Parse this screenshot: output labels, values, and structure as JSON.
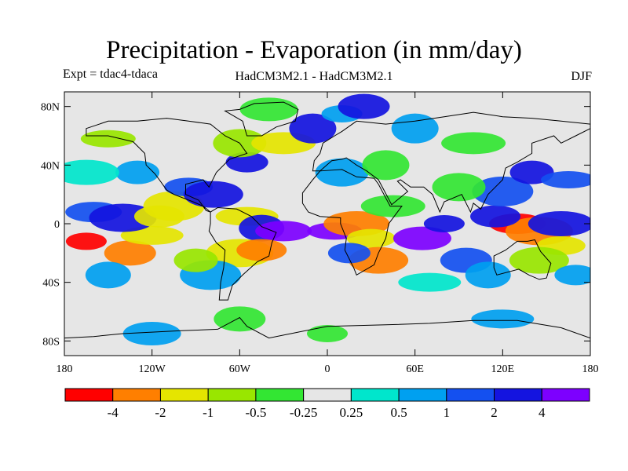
{
  "title": "Precipitation - Evaporation (in mm/day)",
  "left_label": "Expt = tdac4-tdaca",
  "center_label": "HadCM3M2.1 - HadCM3M2.1",
  "right_label": "DJF",
  "map": {
    "lon_range": [
      -180,
      180
    ],
    "lat_range": [
      -90,
      90
    ],
    "ocean_background": "#e6e6e6",
    "lat_ticks": [
      {
        "lat": 80,
        "label": "80N"
      },
      {
        "lat": 40,
        "label": "40N"
      },
      {
        "lat": 0,
        "label": "0"
      },
      {
        "lat": -40,
        "label": "40S"
      },
      {
        "lat": -80,
        "label": "80S"
      }
    ],
    "lon_ticks": [
      {
        "lon": -180,
        "label": "180"
      },
      {
        "lon": -120,
        "label": "120W"
      },
      {
        "lon": -60,
        "label": "60W"
      },
      {
        "lon": 0,
        "label": "0"
      },
      {
        "lon": 60,
        "label": "60E"
      },
      {
        "lon": 120,
        "label": "120E"
      },
      {
        "lon": 180,
        "label": "180"
      }
    ]
  },
  "colorbar": {
    "colors": [
      "#ff0000",
      "#ff7f00",
      "#e5e500",
      "#99e600",
      "#33e633",
      "#e6e6e6",
      "#00e6cc",
      "#00a0f0",
      "#1450f0",
      "#1414e0",
      "#7d00ff"
    ],
    "labels": [
      "-4",
      "-2",
      "-1",
      "-0.5",
      "-0.25",
      "0.25",
      "0.5",
      "1",
      "2",
      "4"
    ]
  },
  "chart_data": {
    "type": "heatmap",
    "title": "Precipitation - Evaporation (in mm/day)",
    "field": "P-E difference",
    "season": "DJF",
    "units": "mm/day",
    "levels": [
      -4,
      -2,
      -1,
      -0.5,
      -0.25,
      0.25,
      0.5,
      1,
      2,
      4
    ],
    "regions": [
      {
        "lon": -165,
        "lat": -12,
        "value": -4.5
      },
      {
        "lon": -135,
        "lat": -20,
        "value": -2.5
      },
      {
        "lon": -120,
        "lat": -8,
        "value": -1.2
      },
      {
        "lon": -150,
        "lat": -35,
        "value": 0.7
      },
      {
        "lon": -160,
        "lat": 8,
        "value": 1.5
      },
      {
        "lon": -140,
        "lat": 4,
        "value": 2.5
      },
      {
        "lon": -115,
        "lat": 5,
        "value": -1.5
      },
      {
        "lon": -105,
        "lat": 12,
        "value": -1.2
      },
      {
        "lon": -130,
        "lat": 35,
        "value": 0.7
      },
      {
        "lon": -150,
        "lat": 58,
        "value": -0.8
      },
      {
        "lon": -165,
        "lat": 35,
        "value": 0.4
      },
      {
        "lon": -95,
        "lat": 25,
        "value": 1.5
      },
      {
        "lon": -78,
        "lat": 20,
        "value": 2.2
      },
      {
        "lon": -55,
        "lat": 42,
        "value": 2.5
      },
      {
        "lon": -60,
        "lat": 55,
        "value": -0.6
      },
      {
        "lon": -30,
        "lat": 55,
        "value": -1.1
      },
      {
        "lon": -10,
        "lat": 65,
        "value": 2.5
      },
      {
        "lon": -40,
        "lat": 78,
        "value": -0.4
      },
      {
        "lon": 10,
        "lat": 75,
        "value": 0.8
      },
      {
        "lon": 25,
        "lat": 80,
        "value": 2.3
      },
      {
        "lon": -55,
        "lat": 5,
        "value": -1.5
      },
      {
        "lon": -45,
        "lat": -3,
        "value": 3
      },
      {
        "lon": -30,
        "lat": -5,
        "value": 4.5
      },
      {
        "lon": -60,
        "lat": -20,
        "value": -1.2
      },
      {
        "lon": -45,
        "lat": -18,
        "value": -2.5
      },
      {
        "lon": -80,
        "lat": -35,
        "value": 0.8
      },
      {
        "lon": -90,
        "lat": -25,
        "value": -0.6
      },
      {
        "lon": 5,
        "lat": -5,
        "value": 4.5
      },
      {
        "lon": 20,
        "lat": 0,
        "value": -2.5
      },
      {
        "lon": 30,
        "lat": -10,
        "value": -1.5
      },
      {
        "lon": 35,
        "lat": -25,
        "value": -3
      },
      {
        "lon": 15,
        "lat": -20,
        "value": 1.2
      },
      {
        "lon": 10,
        "lat": 35,
        "value": 0.8
      },
      {
        "lon": 45,
        "lat": 12,
        "value": -0.4
      },
      {
        "lon": 40,
        "lat": 40,
        "value": -0.3
      },
      {
        "lon": 65,
        "lat": -10,
        "value": 4.5
      },
      {
        "lon": 80,
        "lat": 0,
        "value": 2.8
      },
      {
        "lon": 95,
        "lat": -25,
        "value": 1.2
      },
      {
        "lon": 70,
        "lat": -40,
        "value": 0.4
      },
      {
        "lon": 110,
        "lat": -35,
        "value": 0.6
      },
      {
        "lon": 130,
        "lat": 0,
        "value": -4.5
      },
      {
        "lon": 145,
        "lat": -5,
        "value": -3
      },
      {
        "lon": 115,
        "lat": 5,
        "value": 2.3
      },
      {
        "lon": 120,
        "lat": 22,
        "value": 1.2
      },
      {
        "lon": 140,
        "lat": 35,
        "value": 2.5
      },
      {
        "lon": 165,
        "lat": 30,
        "value": 1.5
      },
      {
        "lon": 160,
        "lat": 0,
        "value": 2.5
      },
      {
        "lon": 160,
        "lat": -15,
        "value": -1.2
      },
      {
        "lon": 145,
        "lat": -25,
        "value": -0.7
      },
      {
        "lon": 170,
        "lat": -35,
        "value": 0.6
      },
      {
        "lon": 90,
        "lat": 25,
        "value": -0.5
      },
      {
        "lon": 100,
        "lat": 55,
        "value": -0.3
      },
      {
        "lon": 60,
        "lat": 65,
        "value": 0.8
      },
      {
        "lon": -120,
        "lat": -75,
        "value": 0.6
      },
      {
        "lon": 0,
        "lat": -75,
        "value": -0.3
      },
      {
        "lon": -60,
        "lat": -65,
        "value": -0.3
      },
      {
        "lon": 120,
        "lat": -65,
        "value": 0.5
      }
    ]
  }
}
